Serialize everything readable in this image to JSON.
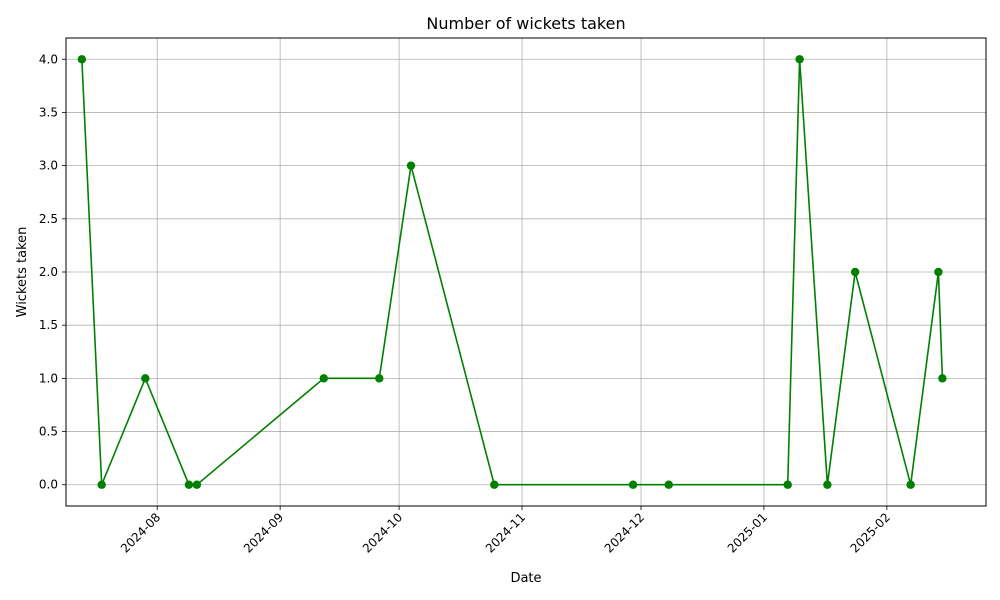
{
  "chart_data": {
    "type": "line",
    "title": "Number of wickets taken",
    "xlabel": "Date",
    "ylabel": "Wickets taken",
    "x": [
      "2024-07-13",
      "2024-07-18",
      "2024-07-29",
      "2024-08-09",
      "2024-08-11",
      "2024-09-12",
      "2024-09-26",
      "2024-10-04",
      "2024-10-25",
      "2024-11-29",
      "2024-12-08",
      "2025-01-07",
      "2025-01-10",
      "2025-01-17",
      "2025-01-24",
      "2025-02-07",
      "2025-02-14",
      "2025-02-15"
    ],
    "series": [
      {
        "values": [
          4,
          0,
          1,
          0,
          0,
          1,
          1,
          3,
          0,
          0,
          0,
          0,
          4,
          0,
          2,
          0,
          2,
          1
        ],
        "color": "#008000"
      }
    ],
    "xlim": [
      "2024-07-09",
      "2025-02-26"
    ],
    "ylim": [
      -0.2,
      4.2
    ],
    "xticks": [
      "2024-08",
      "2024-09",
      "2024-10",
      "2024-11",
      "2024-12",
      "2025-01",
      "2025-02"
    ],
    "yticks": [
      "0.0",
      "0.5",
      "1.0",
      "1.5",
      "2.0",
      "2.5",
      "3.0",
      "3.5",
      "4.0"
    ],
    "grid": true,
    "marker": "circle"
  }
}
